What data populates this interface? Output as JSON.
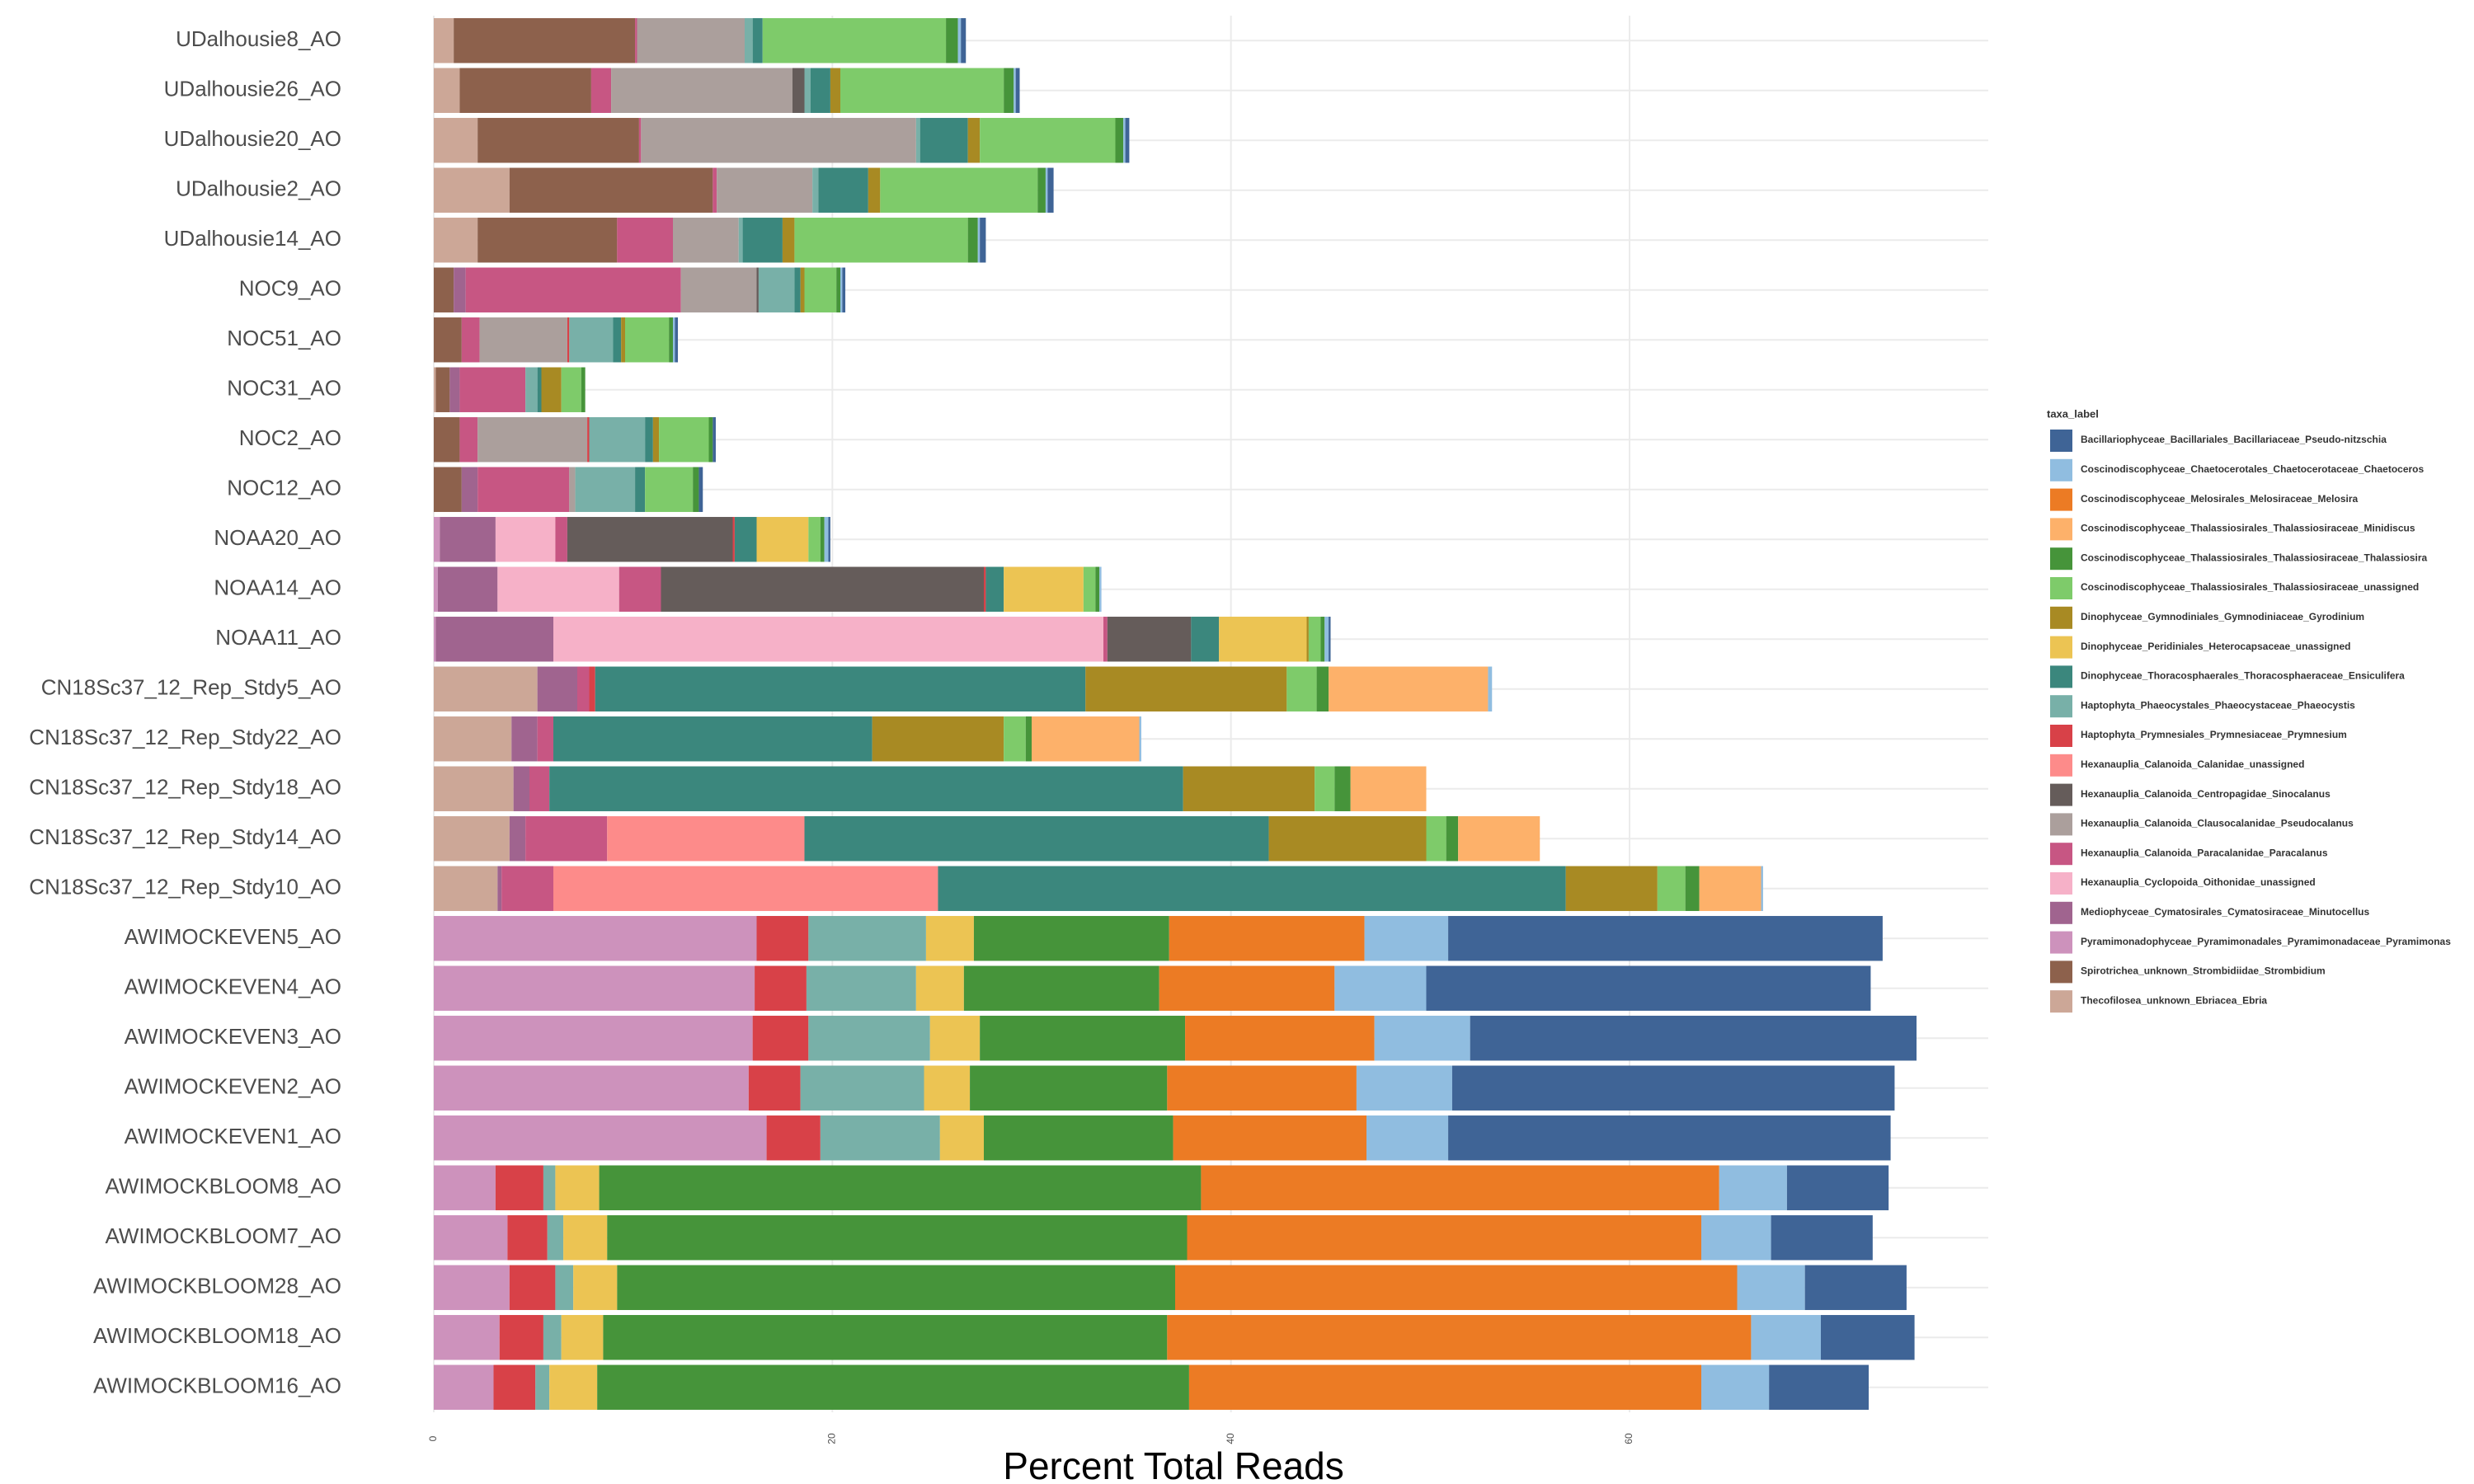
{
  "chart_data": {
    "type": "stacked-barh",
    "xlabel": "Percent Total Reads",
    "legend_title": "taxa_label",
    "legend_position": "right",
    "grid": true,
    "xlim": [
      0,
      78
    ],
    "xticks": [
      0,
      20,
      40,
      60
    ],
    "categories": [
      "UDalhousie8_AO",
      "UDalhousie26_AO",
      "UDalhousie20_AO",
      "UDalhousie2_AO",
      "UDalhousie14_AO",
      "NOC9_AO",
      "NOC51_AO",
      "NOC31_AO",
      "NOC2_AO",
      "NOC12_AO",
      "NOAA20_AO",
      "NOAA14_AO",
      "NOAA11_AO",
      "CN18Sc37_12_Rep_Stdy5_AO",
      "CN18Sc37_12_Rep_Stdy22_AO",
      "CN18Sc37_12_Rep_Stdy18_AO",
      "CN18Sc37_12_Rep_Stdy14_AO",
      "CN18Sc37_12_Rep_Stdy10_AO",
      "AWIMOCKEVEN5_AO",
      "AWIMOCKEVEN4_AO",
      "AWIMOCKEVEN3_AO",
      "AWIMOCKEVEN2_AO",
      "AWIMOCKEVEN1_AO",
      "AWIMOCKBLOOM8_AO",
      "AWIMOCKBLOOM7_AO",
      "AWIMOCKBLOOM28_AO",
      "AWIMOCKBLOOM18_AO",
      "AWIMOCKBLOOM16_AO"
    ],
    "series": [
      {
        "name": "Bacillariophyceae_Bacillariales_Bacillariaceae_Pseudo-nitzschia",
        "color": "#3f6496",
        "values": [
          0.25,
          0.2,
          0.2,
          0.3,
          0.3,
          0.15,
          0.15,
          0,
          0.15,
          0.2,
          0.1,
          0,
          0.1,
          0,
          0,
          0,
          0,
          0,
          21.8,
          22.3,
          22.4,
          22.2,
          22.2,
          5.1,
          5.1,
          5.1,
          4.7,
          5.0
        ]
      },
      {
        "name": "Coscinodiscophyceae_Chaetocerotales_Chaetocerotaceae_Chaetoceros",
        "color": "#90bde0",
        "values": [
          0.15,
          0.1,
          0.1,
          0.1,
          0.1,
          0.1,
          0.1,
          0,
          0,
          0,
          0.2,
          0.1,
          0.2,
          0.2,
          0.1,
          0,
          0,
          0.1,
          4.2,
          4.6,
          4.8,
          4.8,
          4.1,
          3.4,
          3.5,
          3.4,
          3.5,
          3.4
        ]
      },
      {
        "name": "Coscinodiscophyceae_Melosirales_Melosiraceae_Melosira",
        "color": "#ec7b24",
        "values": [
          0,
          0,
          0,
          0,
          0,
          0,
          0,
          0,
          0,
          0,
          0,
          0,
          0,
          0,
          0,
          0,
          0,
          0,
          9.8,
          8.8,
          9.5,
          9.5,
          9.7,
          26.0,
          25.8,
          28.2,
          29.3,
          25.7
        ]
      },
      {
        "name": "Coscinodiscophyceae_Thalassiosirales_Thalassiosiraceae_Minidiscus",
        "color": "#fdb16a",
        "values": [
          0,
          0,
          0,
          0,
          0,
          0,
          0,
          0,
          0,
          0,
          0,
          0,
          0,
          8.0,
          5.4,
          3.8,
          4.1,
          3.1,
          0,
          0,
          0,
          0,
          0,
          0,
          0,
          0,
          0,
          0
        ]
      },
      {
        "name": "Coscinodiscophyceae_Thalassiosirales_Thalassiosiraceae_Thalassiosira",
        "color": "#46943a",
        "values": [
          0.6,
          0.5,
          0.4,
          0.4,
          0.5,
          0.2,
          0.2,
          0.2,
          0.2,
          0.3,
          0.2,
          0.2,
          0.2,
          0.6,
          0.3,
          0.8,
          0.6,
          0.7,
          9.8,
          9.8,
          10.3,
          9.9,
          9.5,
          30.2,
          29.1,
          28.0,
          28.3,
          29.7
        ]
      },
      {
        "name": "Coscinodiscophyceae_Thalassiosirales_Thalassiosiraceae_unassigned",
        "color": "#7ecb6a",
        "values": [
          9.2,
          8.2,
          6.8,
          7.9,
          8.7,
          1.6,
          2.2,
          1.0,
          2.5,
          2.4,
          0.6,
          0.6,
          0.6,
          1.5,
          1.1,
          1.0,
          1.0,
          1.4,
          0,
          0,
          0,
          0,
          0,
          0,
          0,
          0,
          0,
          0
        ]
      },
      {
        "name": "Dinophyceae_Gymnodiniales_Gymnodiniaceae_Gyrodinium",
        "color": "#a88a23",
        "values": [
          0,
          0.5,
          0.6,
          0.6,
          0.6,
          0.2,
          0.2,
          1.0,
          0.3,
          0,
          0,
          0,
          0.1,
          10.1,
          6.6,
          6.6,
          7.9,
          4.6,
          0,
          0,
          0,
          0,
          0,
          0,
          0,
          0,
          0,
          0
        ]
      },
      {
        "name": "Dinophyceae_Peridiniales_Heterocapsaceae_unassigned",
        "color": "#ecc453",
        "values": [
          0,
          0,
          0,
          0,
          0,
          0,
          0,
          0,
          0,
          0,
          2.6,
          4.0,
          4.4,
          0,
          0,
          0,
          0,
          0,
          2.4,
          2.4,
          2.5,
          2.3,
          2.2,
          2.2,
          2.2,
          2.2,
          2.1,
          2.4
        ]
      },
      {
        "name": "Dinophyceae_Thoracosphaerales_Thoracosphaeraceae_Ensiculifera",
        "color": "#3b877d",
        "values": [
          0.5,
          1.0,
          2.4,
          2.5,
          2.0,
          0.3,
          0.4,
          0.2,
          0.4,
          0.5,
          1.1,
          0.9,
          1.4,
          24.6,
          16.0,
          31.8,
          23.3,
          31.5,
          0,
          0,
          0,
          0,
          0,
          0,
          0,
          0,
          0,
          0
        ]
      },
      {
        "name": "Haptophyta_Phaeocystales_Phaeocystaceae_Phaeocystis",
        "color": "#78b0a8",
        "values": [
          0.4,
          0.3,
          0.2,
          0.3,
          0.2,
          1.8,
          2.2,
          0.6,
          2.8,
          3.0,
          0,
          0,
          0,
          0,
          0,
          0,
          0,
          0,
          5.9,
          5.5,
          6.1,
          6.2,
          6.0,
          0.6,
          0.8,
          0.9,
          0.9,
          0.7
        ]
      },
      {
        "name": "Haptophyta_Prymnesiales_Prymnesiaceae_Prymnesium",
        "color": "#d84148",
        "values": [
          0,
          0,
          0,
          0,
          0,
          0,
          0.1,
          0,
          0.1,
          0,
          0.1,
          0.1,
          0,
          0.3,
          0,
          0,
          0,
          0,
          2.6,
          2.6,
          2.8,
          2.6,
          2.7,
          2.4,
          2.0,
          2.3,
          2.2,
          2.1
        ]
      },
      {
        "name": "Hexanauplia_Calanoida_Calanidae_unassigned",
        "color": "#fd8b8a",
        "values": [
          0,
          0,
          0,
          0,
          0,
          0,
          0,
          0,
          0,
          0,
          0,
          0,
          0,
          0,
          0,
          0,
          9.9,
          19.3,
          0,
          0,
          0,
          0,
          0,
          0,
          0,
          0,
          0,
          0
        ]
      },
      {
        "name": "Hexanauplia_Calanoida_Centropagidae_Sinocalanus",
        "color": "#655c5a",
        "values": [
          0,
          0.6,
          0,
          0,
          0,
          0.1,
          0,
          0,
          0,
          0,
          8.3,
          16.2,
          4.2,
          0,
          0,
          0,
          0,
          0,
          0,
          0,
          0,
          0,
          0,
          0,
          0,
          0,
          0,
          0
        ]
      },
      {
        "name": "Hexanauplia_Calanoida_Clausocalanidae_Pseudocalanus",
        "color": "#ab9f9c",
        "values": [
          5.4,
          9.1,
          13.8,
          4.8,
          3.3,
          3.8,
          4.4,
          0,
          5.5,
          0.3,
          0,
          0,
          0,
          0,
          0,
          0,
          0,
          0,
          0,
          0,
          0,
          0,
          0,
          0,
          0,
          0,
          0,
          0
        ]
      },
      {
        "name": "Hexanauplia_Calanoida_Paracalanidae_Paracalanus",
        "color": "#c75683",
        "values": [
          0.1,
          1.0,
          0.1,
          0.2,
          2.8,
          10.8,
          0.9,
          3.3,
          0.9,
          4.6,
          0.6,
          2.1,
          0.2,
          0.6,
          0.8,
          1.0,
          4.1,
          2.6,
          0,
          0,
          0,
          0,
          0,
          0,
          0,
          0,
          0,
          0
        ]
      },
      {
        "name": "Hexanauplia_Cyclopoida_Oithonidae_unassigned",
        "color": "#f6b1c8",
        "values": [
          0,
          0,
          0,
          0,
          0,
          0,
          0,
          0,
          0,
          0,
          3.0,
          6.1,
          27.6,
          0,
          0,
          0,
          0,
          0,
          0,
          0,
          0,
          0,
          0,
          0,
          0,
          0,
          0,
          0
        ]
      },
      {
        "name": "Mediophyceae_Cymatosirales_Cymatosiraceae_Minutocellus",
        "color": "#a0648f",
        "values": [
          0,
          0,
          0,
          0,
          0,
          0.6,
          0,
          0.5,
          0,
          0.8,
          2.8,
          3.0,
          5.9,
          2.0,
          1.3,
          0.8,
          0.8,
          0.2,
          0,
          0,
          0,
          0,
          0,
          0,
          0,
          0,
          0,
          0
        ]
      },
      {
        "name": "Pyramimonadophyceae_Pyramimonadales_Pyramimonadaceae_Pyramimonas",
        "color": "#cd92bc",
        "values": [
          0,
          0,
          0,
          0,
          0,
          0,
          0,
          0,
          0,
          0,
          0.3,
          0.2,
          0.1,
          0,
          0,
          0,
          0,
          0,
          16.2,
          16.1,
          16.0,
          15.8,
          16.7,
          3.1,
          3.7,
          3.8,
          3.3,
          3.0
        ]
      },
      {
        "name": "Spirotrichea_unknown_Strombidiidae_Strombidium",
        "color": "#8d614c",
        "values": [
          9.1,
          6.6,
          8.1,
          10.2,
          7.0,
          1.0,
          1.4,
          0.7,
          1.3,
          1.4,
          0,
          0,
          0,
          0,
          0,
          0,
          0,
          0,
          0,
          0,
          0,
          0,
          0,
          0,
          0,
          0,
          0,
          0
        ]
      },
      {
        "name": "Thecofilosea_unknown_Ebriacea_Ebria",
        "color": "#cca797",
        "values": [
          1.0,
          1.3,
          2.2,
          3.8,
          2.2,
          0,
          0,
          0.1,
          0,
          0,
          0,
          0,
          0,
          5.2,
          3.9,
          4.0,
          3.8,
          3.2,
          0,
          0,
          0,
          0,
          0,
          0,
          0,
          0,
          0,
          0
        ]
      }
    ]
  }
}
